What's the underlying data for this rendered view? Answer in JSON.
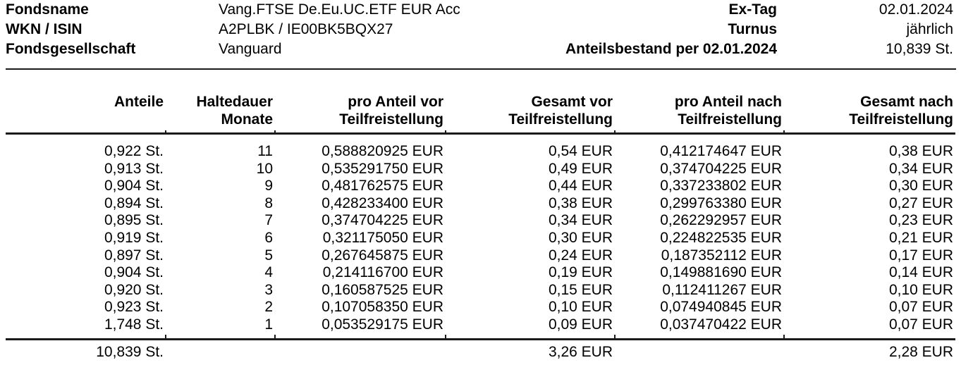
{
  "fund_info": {
    "left": [
      {
        "label": "Fondsname",
        "value": "Vang.FTSE De.Eu.UC.ETF EUR Acc"
      },
      {
        "label": "WKN / ISIN",
        "value": "A2PLBK / IE00BK5BQX27"
      },
      {
        "label": "Fondsgesellschaft",
        "value": "Vanguard"
      }
    ],
    "right": [
      {
        "label": "Ex-Tag",
        "value": "02.01.2024"
      },
      {
        "label": "Turnus",
        "value": "jährlich"
      },
      {
        "label": "Anteilsbestand per 02.01.2024",
        "value": "10,839 St."
      }
    ]
  },
  "table": {
    "headers": [
      {
        "line1": "Anteile",
        "line2": ""
      },
      {
        "line1": "Haltedauer",
        "line2": "Monate"
      },
      {
        "line1": "pro Anteil vor",
        "line2": "Teilfreistellung"
      },
      {
        "line1": "Gesamt vor",
        "line2": "Teilfreistellung"
      },
      {
        "line1": "pro Anteil nach",
        "line2": "Teilfreistellung"
      },
      {
        "line1": "Gesamt nach",
        "line2": "Teilfreistellung"
      }
    ],
    "rows": [
      [
        "0,922 St.",
        "11",
        "0,588820925 EUR",
        "0,54 EUR",
        "0,412174647 EUR",
        "0,38 EUR"
      ],
      [
        "0,913 St.",
        "10",
        "0,535291750 EUR",
        "0,49 EUR",
        "0,374704225 EUR",
        "0,34 EUR"
      ],
      [
        "0,904 St.",
        "9",
        "0,481762575 EUR",
        "0,44 EUR",
        "0,337233802 EUR",
        "0,30 EUR"
      ],
      [
        "0,894 St.",
        "8",
        "0,428233400 EUR",
        "0,38 EUR",
        "0,299763380 EUR",
        "0,27 EUR"
      ],
      [
        "0,895 St.",
        "7",
        "0,374704225 EUR",
        "0,34 EUR",
        "0,262292957 EUR",
        "0,23 EUR"
      ],
      [
        "0,919 St.",
        "6",
        "0,321175050 EUR",
        "0,30 EUR",
        "0,224822535 EUR",
        "0,21 EUR"
      ],
      [
        "0,897 St.",
        "5",
        "0,267645875 EUR",
        "0,24 EUR",
        "0,187352112 EUR",
        "0,17 EUR"
      ],
      [
        "0,904 St.",
        "4",
        "0,214116700 EUR",
        "0,19 EUR",
        "0,149881690 EUR",
        "0,14 EUR"
      ],
      [
        "0,920 St.",
        "3",
        "0,160587525 EUR",
        "0,15 EUR",
        "0,112411267 EUR",
        "0,10 EUR"
      ],
      [
        "0,923 St.",
        "2",
        "0,107058350 EUR",
        "0,10 EUR",
        "0,074940845 EUR",
        "0,07 EUR"
      ],
      [
        "1,748 St.",
        "1",
        "0,053529175 EUR",
        "0,09 EUR",
        "0,037470422 EUR",
        "0,07 EUR"
      ]
    ],
    "totals": {
      "anteile": "10,839 St.",
      "gesamt_vor": "3,26 EUR",
      "gesamt_nach": "2,28 EUR"
    }
  },
  "colors": {
    "text": "#000000",
    "rule": "#1a1a1a",
    "background": "#ffffff"
  }
}
